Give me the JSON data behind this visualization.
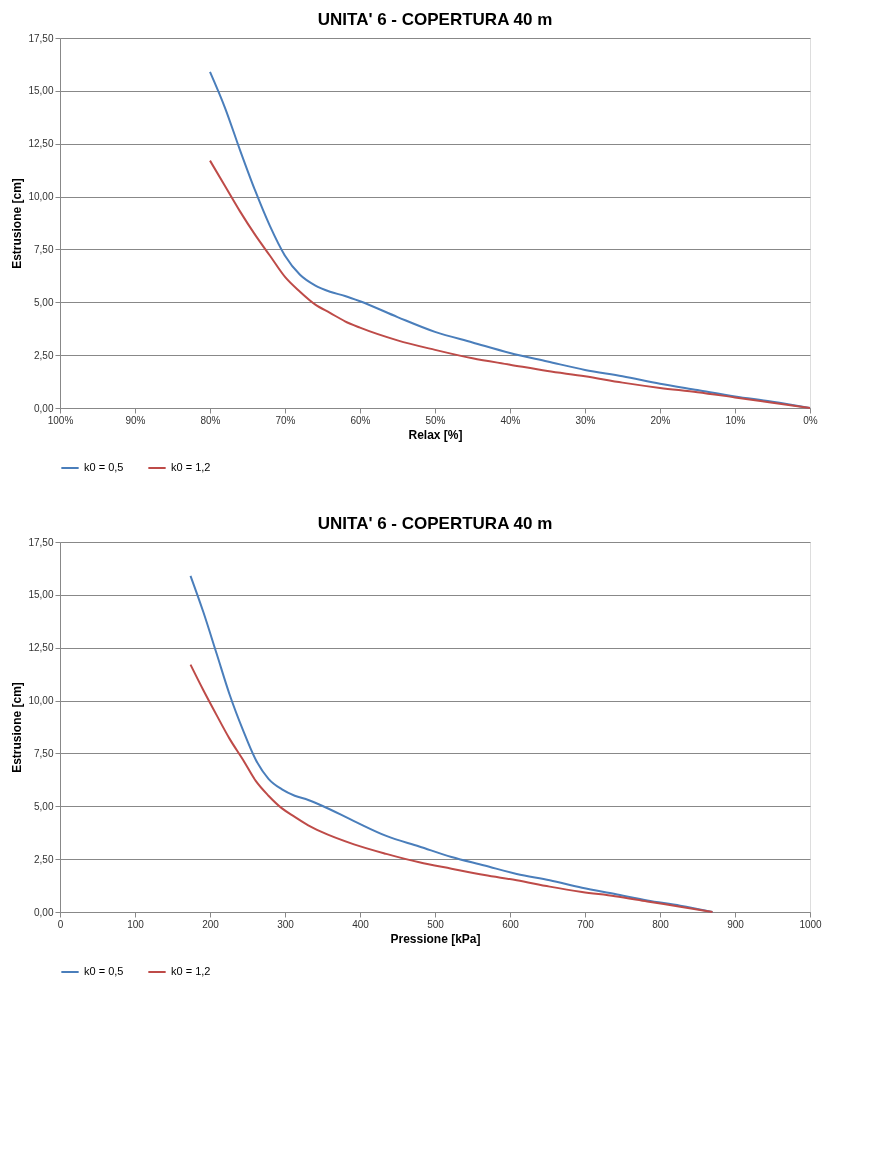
{
  "chart_data": [
    {
      "type": "line",
      "title": "UNITA' 6 - COPERTURA 40 m",
      "xlabel": "Relax [%]",
      "ylabel": "Estrusione [cm]",
      "x": [
        80,
        78,
        76,
        74,
        72,
        70,
        68,
        66,
        64,
        62,
        60,
        55,
        50,
        45,
        40,
        35,
        30,
        25,
        20,
        15,
        10,
        5,
        0
      ],
      "series": [
        {
          "name": "k0 = 0,5",
          "color": "#4a7ebb",
          "values": [
            15.9,
            14.2,
            12.2,
            10.3,
            8.6,
            7.2,
            6.3,
            5.8,
            5.5,
            5.3,
            5.05,
            4.3,
            3.6,
            3.1,
            2.6,
            2.2,
            1.8,
            1.5,
            1.15,
            0.85,
            0.55,
            0.3,
            0.0
          ]
        },
        {
          "name": "k0 = 1,2",
          "color": "#be4b48",
          "values": [
            11.7,
            10.5,
            9.3,
            8.2,
            7.2,
            6.2,
            5.5,
            4.9,
            4.5,
            4.1,
            3.8,
            3.2,
            2.75,
            2.35,
            2.05,
            1.75,
            1.5,
            1.2,
            0.95,
            0.75,
            0.5,
            0.25,
            0.0
          ]
        }
      ],
      "xlim": [
        100,
        0
      ],
      "xticks": [
        {
          "value": 100,
          "label": "100%"
        },
        {
          "value": 90,
          "label": "90%"
        },
        {
          "value": 80,
          "label": "80%"
        },
        {
          "value": 70,
          "label": "70%"
        },
        {
          "value": 60,
          "label": "60%"
        },
        {
          "value": 50,
          "label": "50%"
        },
        {
          "value": 40,
          "label": "40%"
        },
        {
          "value": 30,
          "label": "30%"
        },
        {
          "value": 20,
          "label": "20%"
        },
        {
          "value": 10,
          "label": "10%"
        },
        {
          "value": 0,
          "label": "0%"
        }
      ],
      "ylim": [
        0,
        17.5
      ],
      "yticks": [
        {
          "value": 0,
          "label": "0,00"
        },
        {
          "value": 2.5,
          "label": "2,50"
        },
        {
          "value": 5,
          "label": "5,00"
        },
        {
          "value": 7.5,
          "label": "7,50"
        },
        {
          "value": 10,
          "label": "10,00"
        },
        {
          "value": 12.5,
          "label": "12,50"
        },
        {
          "value": 15,
          "label": "15,00"
        },
        {
          "value": 17.5,
          "label": "17,50"
        }
      ],
      "grid": "y",
      "legend": "bottom",
      "line_style": "solid"
    },
    {
      "type": "line",
      "title": "UNITA' 6 - COPERTURA 40 m",
      "xlabel": "Pressione [kPa]",
      "ylabel": "Estrusione [cm]",
      "x": [
        174,
        191,
        209,
        226,
        244,
        261,
        278,
        296,
        313,
        331,
        348,
        392,
        435,
        479,
        522,
        566,
        609,
        653,
        696,
        740,
        783,
        827,
        870
      ],
      "series": [
        {
          "name": "k0 = 0,5",
          "color": "#4a7ebb",
          "values": [
            15.9,
            14.2,
            12.2,
            10.3,
            8.6,
            7.2,
            6.3,
            5.8,
            5.5,
            5.3,
            5.05,
            4.3,
            3.6,
            3.1,
            2.6,
            2.2,
            1.8,
            1.5,
            1.15,
            0.85,
            0.55,
            0.3,
            0.0
          ]
        },
        {
          "name": "k0 = 1,2",
          "color": "#be4b48",
          "values": [
            11.7,
            10.5,
            9.3,
            8.2,
            7.2,
            6.2,
            5.5,
            4.9,
            4.5,
            4.1,
            3.8,
            3.2,
            2.75,
            2.35,
            2.05,
            1.75,
            1.5,
            1.2,
            0.95,
            0.75,
            0.5,
            0.25,
            0.0
          ]
        }
      ],
      "xlim": [
        0,
        1000
      ],
      "xticks": [
        0,
        100,
        200,
        300,
        400,
        500,
        600,
        700,
        800,
        900,
        1000
      ],
      "ylim": [
        0,
        17.5
      ],
      "yticks": [
        {
          "value": 0,
          "label": "0,00"
        },
        {
          "value": 2.5,
          "label": "2,50"
        },
        {
          "value": 5,
          "label": "5,00"
        },
        {
          "value": 7.5,
          "label": "7,50"
        },
        {
          "value": 10,
          "label": "10,00"
        },
        {
          "value": 12.5,
          "label": "12,50"
        },
        {
          "value": 15,
          "label": "15,00"
        },
        {
          "value": 17.5,
          "label": "17,50"
        }
      ],
      "grid": "y",
      "legend": "bottom",
      "line_style": "solid"
    }
  ]
}
